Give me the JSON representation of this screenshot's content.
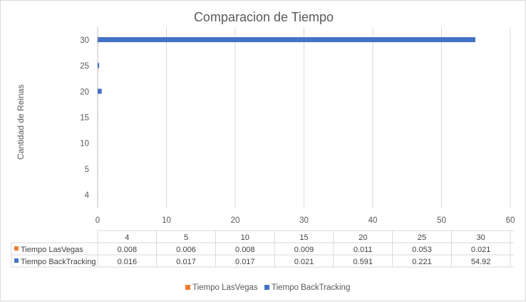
{
  "chart_data": {
    "type": "bar",
    "orientation": "horizontal",
    "title": "Comparacion de Tiempo",
    "ylabel": "Cantidad de Reinas",
    "xlabel": "",
    "categories": [
      "4",
      "5",
      "10",
      "15",
      "20",
      "25",
      "30"
    ],
    "xlim": [
      0,
      60
    ],
    "x_ticks": [
      "0",
      "10",
      "20",
      "30",
      "40",
      "50",
      "60"
    ],
    "grid": "vertical",
    "legend_position": "bottom",
    "series": [
      {
        "name": "Tiempo LasVegas",
        "color": "#ed7d31",
        "values": [
          0.008,
          0.006,
          0.008,
          0.009,
          0.011,
          0.053,
          0.021
        ],
        "labels": [
          "0.008",
          "0.006",
          "0.008",
          "0.009",
          "0.011",
          "0.053",
          "0.021"
        ]
      },
      {
        "name": "Tiempo BackTracking",
        "color": "#4472c4",
        "values": [
          0.016,
          0.017,
          0.017,
          0.021,
          0.591,
          0.221,
          54.92
        ],
        "labels": [
          "0.016",
          "0.017",
          "0.017",
          "0.021",
          "0.591",
          "0.221",
          "54.92"
        ]
      }
    ],
    "data_table": true
  }
}
